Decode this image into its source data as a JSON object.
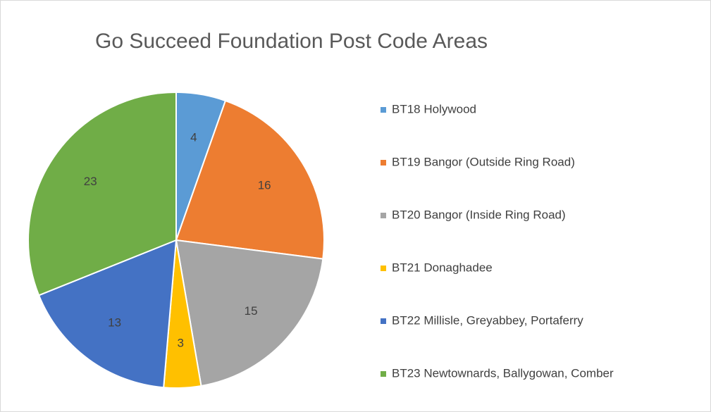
{
  "chart_data": {
    "type": "pie",
    "title": "Go Succeed Foundation Post Code Areas",
    "categories": [
      "BT18 Holywood",
      "BT19 Bangor (Outside Ring Road)",
      "BT20 Bangor (Inside Ring Road)",
      "BT21 Donaghadee",
      "BT22 Millisle, Greyabbey, Portaferry",
      "BT23 Newtownards, Ballygowan, Comber"
    ],
    "values": [
      4,
      16,
      15,
      3,
      13,
      23
    ],
    "colors": [
      "#5b9bd5",
      "#ed7d31",
      "#a5a5a5",
      "#ffc000",
      "#4472c4",
      "#70ad47"
    ],
    "legend": "right"
  }
}
